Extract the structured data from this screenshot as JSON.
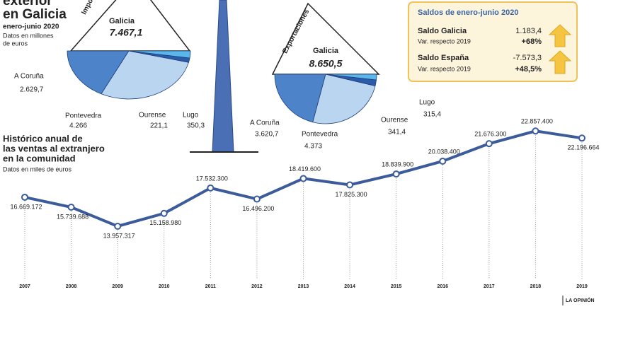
{
  "header": {
    "title_lines": [
      "exterior",
      "en Galicia"
    ],
    "period": "enero-junio 2020",
    "unit_lines": [
      "Datos en millones",
      "de euros"
    ]
  },
  "summary": {
    "title": "Saldos de enero-junio 2020",
    "rows": [
      {
        "label": "Saldo Galicia",
        "sub": "Var. respecto 2019",
        "value": "1.183,4",
        "change": "+68%"
      },
      {
        "label": "Saldo España",
        "sub": "Var. respecto 2019",
        "value": "-7.573,3",
        "change": "+48,5%"
      }
    ]
  },
  "credit": "LA OPINIÓN",
  "chart_data": [
    {
      "type": "line",
      "title_lines": [
        "Histórico anual de",
        "las ventas al extranjero",
        "en la comunidad"
      ],
      "subtitle": "Datos en miles de euros",
      "categories": [
        "2007",
        "2008",
        "2009",
        "2010",
        "2011",
        "2012",
        "2013",
        "2014",
        "2015",
        "2016",
        "2017",
        "2018",
        "2019"
      ],
      "values": [
        16669172,
        15739688,
        13957317,
        15158980,
        17532300,
        16496200,
        18419600,
        17825300,
        18839900,
        20038400,
        21676300,
        22857400,
        22196664
      ],
      "value_labels": [
        "16.669.172",
        "15.739.688",
        "13.957.317",
        "15.158.980",
        "17.532.300",
        "16.496.200",
        "18.419.600",
        "17.825.300",
        "18.839.900",
        "20.038.400",
        "21.676.300",
        "22.857.400",
        "22.196.664"
      ],
      "color": "#3b5b9a",
      "ylim": [
        9000000,
        24000000
      ]
    },
    {
      "type": "pie",
      "title": "Importaciones",
      "center_label": "Galicia",
      "center_value": "7.467,1",
      "categories": [
        "A Coruña",
        "Pontevedra",
        "Ourense",
        "Lugo"
      ],
      "values": [
        2629.7,
        4266,
        221.1,
        350.3
      ],
      "value_labels": [
        "2.629,7",
        "4.266",
        "221,1",
        "350,3"
      ],
      "colors": [
        "#4d83c9",
        "#b9d5f0",
        "#2b5ba8",
        "#5bb6ea"
      ]
    },
    {
      "type": "pie",
      "title": "Exportaciones",
      "center_label": "Galicia",
      "center_value": "8.650,5",
      "categories": [
        "A Coruña",
        "Pontevedra",
        "Ourense",
        "Lugo"
      ],
      "values": [
        3620.7,
        4373,
        341.4,
        315.4
      ],
      "value_labels": [
        "3.620,7",
        "4.373",
        "341,4",
        "315,4"
      ],
      "colors": [
        "#4d83c9",
        "#b9d5f0",
        "#2b5ba8",
        "#5bb6ea"
      ]
    }
  ]
}
